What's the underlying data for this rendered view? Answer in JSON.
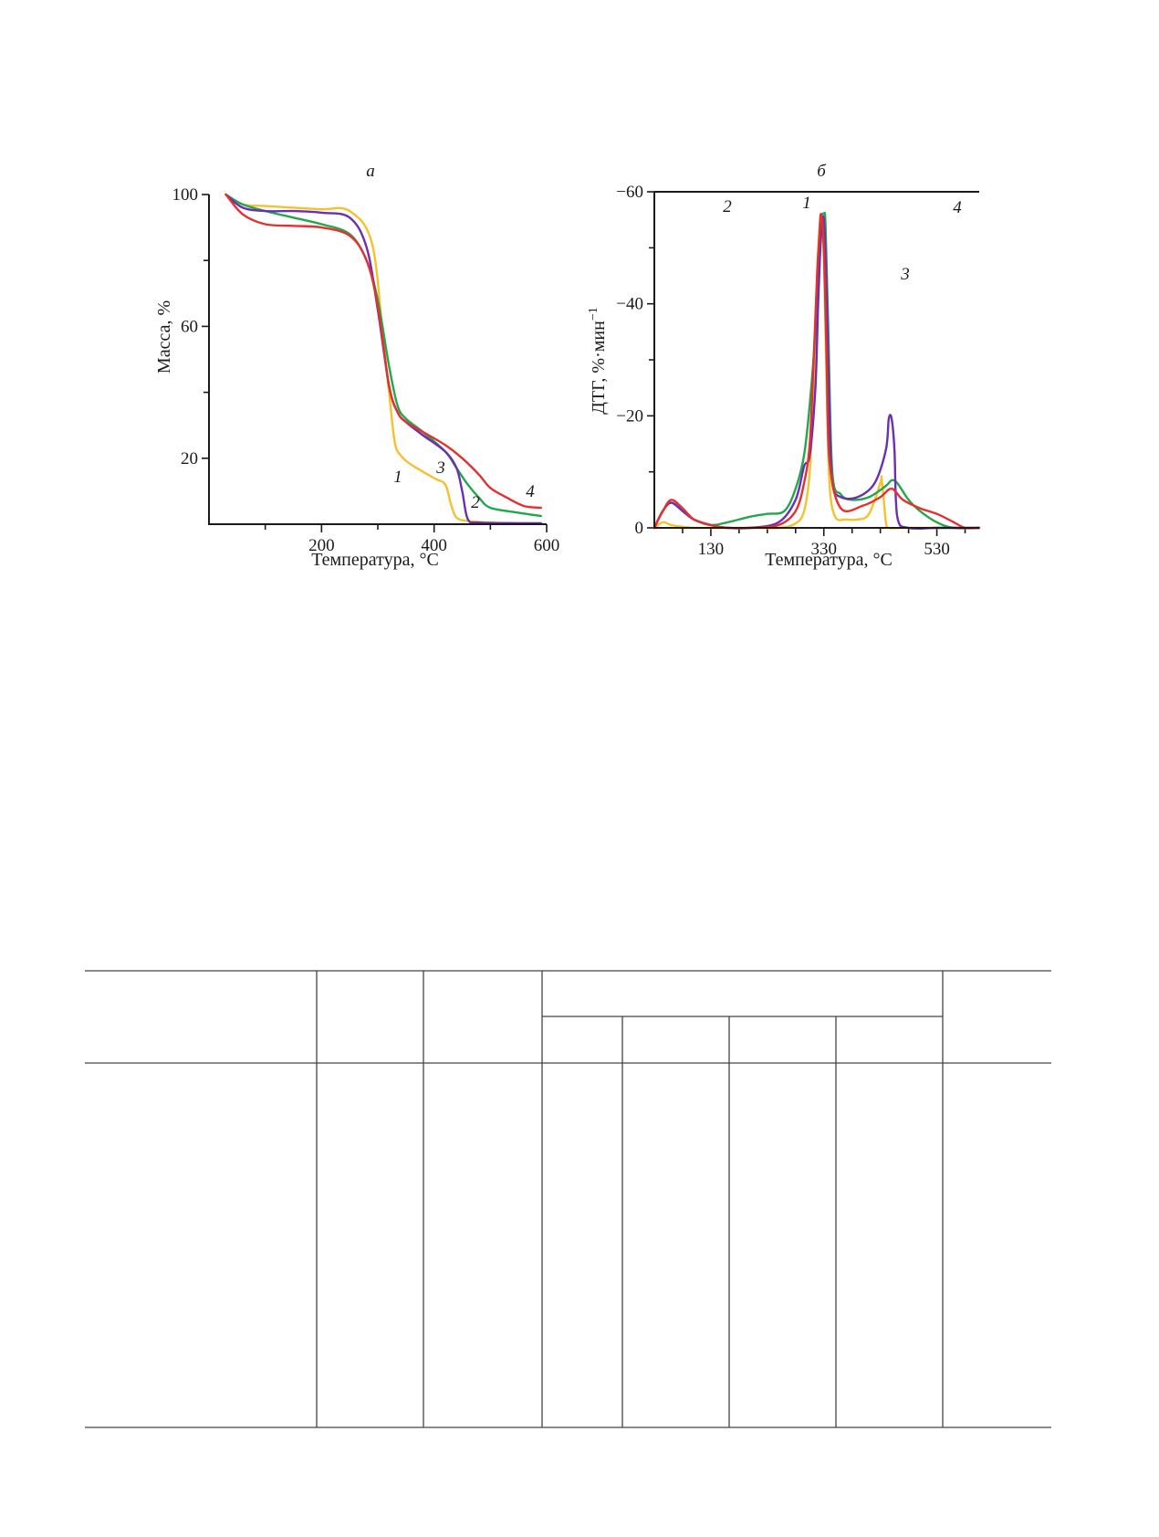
{
  "chart_data": [
    {
      "type": "line",
      "panel_label": "а",
      "xlabel": "Температура, °C",
      "ylabel": "Масса, %",
      "xlim": [
        0,
        600
      ],
      "ylim": [
        0,
        100
      ],
      "x_ticks": [
        200,
        400,
        600
      ],
      "x_minor_ticks": [
        100,
        300,
        500
      ],
      "y_ticks": [
        20,
        60,
        100
      ],
      "y_minor_ticks": [
        40,
        80
      ],
      "series": [
        {
          "curve_label": "1",
          "color": "#f5c12c",
          "x": [
            30,
            60,
            100,
            150,
            200,
            250,
            290,
            310,
            320,
            330,
            340,
            360,
            400,
            420,
            430,
            440,
            460,
            500,
            550,
            590
          ],
          "y": [
            100,
            97,
            96.5,
            96,
            95.5,
            95,
            85,
            55,
            40,
            25,
            21,
            18,
            14,
            12,
            6,
            2,
            1,
            0.5,
            0.3,
            0.3
          ]
        },
        {
          "curve_label": "2",
          "color": "#22a84a",
          "x": [
            30,
            60,
            100,
            150,
            200,
            250,
            280,
            300,
            320,
            335,
            350,
            380,
            420,
            440,
            460,
            480,
            500,
            550,
            590
          ],
          "y": [
            100,
            97,
            95,
            93,
            91,
            88,
            80,
            68,
            48,
            36,
            32,
            28,
            22,
            17,
            12,
            8,
            5,
            3.5,
            2.5
          ]
        },
        {
          "curve_label": "3",
          "color": "#6b2fb3",
          "x": [
            30,
            60,
            100,
            150,
            200,
            250,
            280,
            300,
            320,
            335,
            350,
            380,
            420,
            440,
            450,
            460,
            480,
            550,
            590
          ],
          "y": [
            100,
            96,
            95,
            95,
            94.5,
            93,
            84,
            65,
            42,
            34,
            31,
            27,
            22,
            17,
            10,
            1.5,
            0.5,
            0.3,
            0.3
          ]
        },
        {
          "curve_label": "4",
          "color": "#e53030",
          "x": [
            30,
            60,
            100,
            150,
            200,
            250,
            280,
            300,
            320,
            335,
            350,
            380,
            420,
            450,
            480,
            500,
            530,
            560,
            590
          ],
          "y": [
            100,
            94,
            91,
            90.5,
            90,
            87.5,
            80,
            66,
            42,
            34,
            31,
            28,
            24,
            20,
            15,
            11,
            8,
            5.5,
            5
          ]
        }
      ]
    },
    {
      "type": "line",
      "panel_label": "б",
      "xlabel": "Температура, °C",
      "ylabel": "ДТГ, %·мин",
      "ylabel_superscript": "−1",
      "xlim": [
        30,
        605
      ],
      "ylim": [
        -60,
        0
      ],
      "x_ticks": [
        130,
        330,
        530
      ],
      "x_minor_ticks": [
        80,
        180,
        230,
        280,
        380,
        430,
        480,
        580
      ],
      "y_ticks": [
        0,
        -20,
        -40,
        -60
      ],
      "y_minor_ticks": [
        -10,
        -30,
        -50
      ],
      "series": [
        {
          "curve_label": "1",
          "color": "#f5c12c",
          "x": [
            30,
            45,
            60,
            80,
            100,
            150,
            200,
            250,
            280,
            295,
            305,
            312,
            318,
            324,
            330,
            335,
            340,
            350,
            370,
            390,
            410,
            430,
            432,
            436,
            440,
            445,
            470,
            530,
            605
          ],
          "y": [
            0,
            -1,
            -0.5,
            -0.2,
            0,
            0,
            0,
            0,
            -0.8,
            -3,
            -10,
            -25,
            -45,
            -55,
            -48,
            -25,
            -8,
            -2,
            -1.5,
            -1.5,
            -2.5,
            -8,
            -9,
            -5,
            -1,
            0,
            0,
            0,
            0
          ]
        },
        {
          "curve_label": "2",
          "color": "#22a84a",
          "x": [
            30,
            45,
            60,
            80,
            100,
            130,
            160,
            200,
            230,
            260,
            280,
            295,
            305,
            315,
            320,
            325,
            330,
            333,
            338,
            345,
            360,
            380,
            410,
            440,
            450,
            460,
            480,
            500,
            530,
            560,
            605
          ],
          "y": [
            0,
            -3,
            -4.5,
            -3,
            -1.5,
            -0.5,
            -1,
            -2,
            -2.5,
            -3,
            -7,
            -13,
            -22,
            -35,
            -48,
            -55,
            -56,
            -54,
            -35,
            -10,
            -6,
            -5,
            -5.5,
            -7.5,
            -8.5,
            -8,
            -5,
            -3,
            -1,
            0,
            0
          ]
        },
        {
          "curve_label": "3",
          "color": "#6b2fb3",
          "x": [
            30,
            45,
            60,
            80,
            100,
            130,
            160,
            200,
            250,
            280,
            295,
            305,
            315,
            320,
            325,
            330,
            335,
            340,
            345,
            360,
            390,
            420,
            440,
            445,
            450,
            455,
            460,
            480,
            530,
            605
          ],
          "y": [
            0,
            -3,
            -4.5,
            -3,
            -1.5,
            -0.5,
            0,
            0,
            -1,
            -5,
            -11,
            -13,
            -25,
            -40,
            -52,
            -55,
            -42,
            -20,
            -8,
            -5.5,
            -5.5,
            -8,
            -14,
            -19.5,
            -19.5,
            -14,
            -2,
            0,
            0,
            0
          ]
        },
        {
          "curve_label": "4",
          "color": "#e53030",
          "x": [
            30,
            45,
            60,
            80,
            100,
            130,
            160,
            200,
            250,
            280,
            295,
            305,
            312,
            318,
            322,
            325,
            330,
            335,
            340,
            360,
            400,
            430,
            450,
            470,
            500,
            530,
            560,
            580,
            605
          ],
          "y": [
            0,
            -3,
            -5,
            -3.5,
            -1.5,
            -0.5,
            0,
            0,
            -0.5,
            -3,
            -8,
            -15,
            -30,
            -45,
            -52,
            -56,
            -50,
            -30,
            -12,
            -3.5,
            -4,
            -5.5,
            -7,
            -5,
            -3.5,
            -2.5,
            -1,
            0,
            0
          ]
        }
      ]
    }
  ]
}
